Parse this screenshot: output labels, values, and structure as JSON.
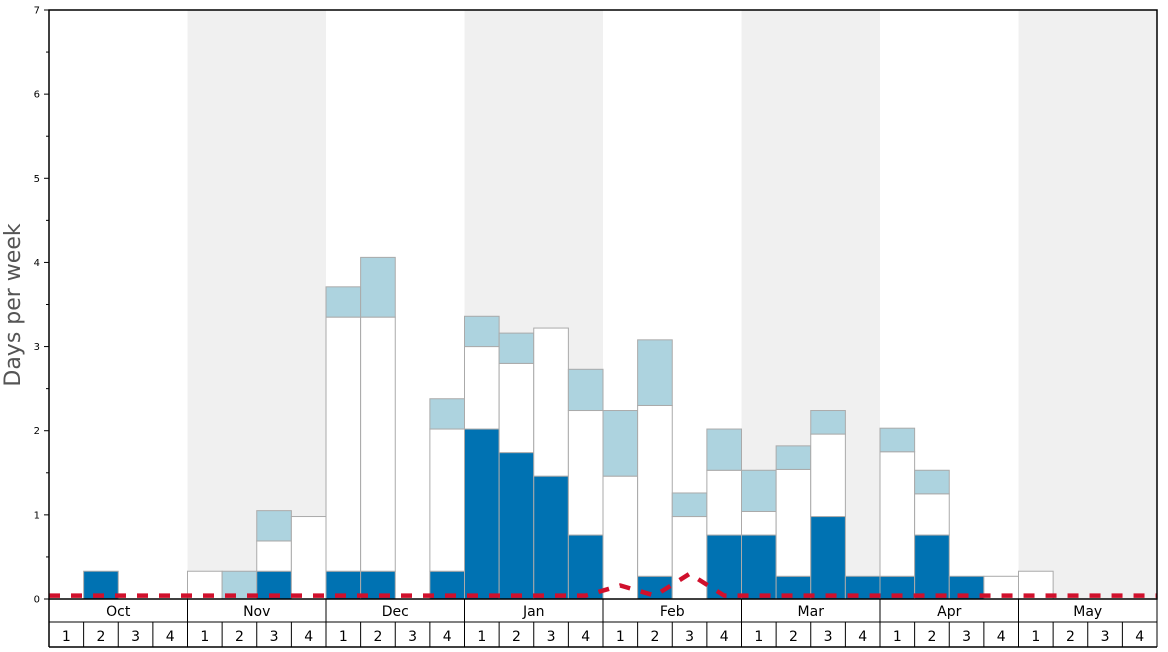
{
  "chart_data": {
    "type": "bar",
    "stacked": true,
    "ylabel": "Days per week",
    "ylim": [
      0,
      7
    ],
    "yticks": [
      "0",
      "1",
      "2",
      "3",
      "4",
      "5",
      "6",
      "7"
    ],
    "months": [
      "Oct",
      "Nov",
      "Dec",
      "Jan",
      "Feb",
      "Mar",
      "Apr",
      "May"
    ],
    "week_labels": [
      "1",
      "2",
      "3",
      "4"
    ],
    "alternate_month_shading": true,
    "colors": {
      "dark": "#0072b2",
      "white": "#ffffff",
      "light": "#add3df",
      "shade": "#f0f0f0",
      "line": "#d0102c",
      "bar_stroke": "#aaaaaa"
    },
    "series": [
      {
        "fill": "dark",
        "values": [
          0,
          0.33,
          0,
          0,
          0,
          0,
          0.33,
          0,
          0.33,
          0.33,
          0,
          0.33,
          2.02,
          1.74,
          1.46,
          0.76,
          0,
          0.27,
          0,
          0.76,
          0.76,
          0.27,
          0.98,
          0.27,
          0.27,
          0.76,
          0.27,
          0,
          0,
          0,
          0,
          0
        ]
      },
      {
        "fill": "white",
        "values": [
          0,
          0,
          0,
          0,
          0.33,
          0,
          0.36,
          0.98,
          3.02,
          3.02,
          0,
          1.69,
          0.98,
          1.06,
          1.76,
          1.48,
          1.46,
          2.03,
          0.98,
          0.77,
          0.28,
          1.27,
          0.98,
          0,
          1.48,
          0.49,
          0,
          0.27,
          0.33,
          0,
          0,
          0
        ]
      },
      {
        "fill": "light",
        "values": [
          0,
          0,
          0,
          0,
          0,
          0.33,
          0.36,
          0,
          0.36,
          0.71,
          0,
          0.36,
          0.36,
          0.36,
          0,
          0.49,
          0.78,
          0.78,
          0.28,
          0.49,
          0.49,
          0.28,
          0.28,
          0,
          0.28,
          0.28,
          0,
          0,
          0,
          0,
          0,
          0
        ]
      }
    ],
    "trend_line": [
      0.04,
      0.04,
      0.04,
      0.04,
      0.04,
      0.04,
      0.04,
      0.04,
      0.04,
      0.04,
      0.04,
      0.04,
      0.04,
      0.04,
      0.04,
      0.04,
      0.16,
      0.04,
      0.3,
      0.04,
      0.04,
      0.04,
      0.04,
      0.04,
      0.04,
      0.04,
      0.04,
      0.04,
      0.04,
      0.04,
      0.04,
      0.04
    ]
  }
}
